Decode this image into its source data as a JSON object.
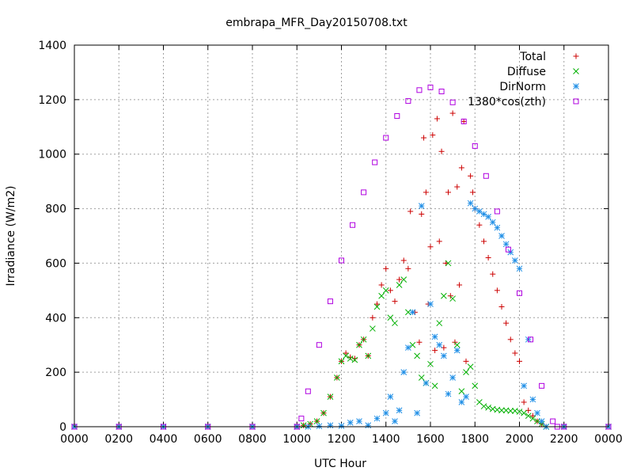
{
  "chart_data": {
    "type": "scatter",
    "title": "embrapa_MFR_Day20150708.txt",
    "xlabel": "UTC Hour",
    "ylabel": "Irradiance (W/m2)",
    "xlim": [
      0,
      24
    ],
    "ylim": [
      0,
      1400
    ],
    "x_ticks": [
      {
        "value": 0,
        "label": "0000"
      },
      {
        "value": 2,
        "label": "0200"
      },
      {
        "value": 4,
        "label": "0400"
      },
      {
        "value": 6,
        "label": "0600"
      },
      {
        "value": 8,
        "label": "0800"
      },
      {
        "value": 10,
        "label": "1000"
      },
      {
        "value": 12,
        "label": "1200"
      },
      {
        "value": 14,
        "label": "1400"
      },
      {
        "value": 16,
        "label": "1600"
      },
      {
        "value": 18,
        "label": "1800"
      },
      {
        "value": 20,
        "label": "2000"
      },
      {
        "value": 22,
        "label": "2200"
      },
      {
        "value": 24,
        "label": "0000"
      }
    ],
    "y_ticks": [
      0,
      200,
      400,
      600,
      800,
      1000,
      1200,
      1400
    ],
    "grid": true,
    "legend_position": "top-right",
    "series": [
      {
        "name": "Total",
        "marker": "+",
        "color": "#cc0000",
        "points": [
          [
            0,
            0
          ],
          [
            2,
            0
          ],
          [
            4,
            0
          ],
          [
            6,
            0
          ],
          [
            8,
            0
          ],
          [
            10,
            0
          ],
          [
            10.3,
            5
          ],
          [
            10.6,
            10
          ],
          [
            10.9,
            20
          ],
          [
            11.2,
            50
          ],
          [
            11.5,
            110
          ],
          [
            11.8,
            180
          ],
          [
            12.0,
            240
          ],
          [
            12.2,
            270
          ],
          [
            12.4,
            255
          ],
          [
            12.6,
            250
          ],
          [
            12.8,
            300
          ],
          [
            13.0,
            320
          ],
          [
            13.2,
            260
          ],
          [
            13.4,
            400
          ],
          [
            13.6,
            450
          ],
          [
            13.8,
            520
          ],
          [
            14.0,
            580
          ],
          [
            14.2,
            500
          ],
          [
            14.4,
            460
          ],
          [
            14.6,
            540
          ],
          [
            14.8,
            610
          ],
          [
            15.0,
            580
          ],
          [
            15.1,
            790
          ],
          [
            15.3,
            420
          ],
          [
            15.5,
            310
          ],
          [
            15.6,
            780
          ],
          [
            15.7,
            1060
          ],
          [
            15.8,
            860
          ],
          [
            15.9,
            450
          ],
          [
            16.0,
            660
          ],
          [
            16.1,
            1070
          ],
          [
            16.2,
            280
          ],
          [
            16.3,
            1130
          ],
          [
            16.4,
            680
          ],
          [
            16.5,
            1010
          ],
          [
            16.6,
            290
          ],
          [
            16.7,
            600
          ],
          [
            16.8,
            860
          ],
          [
            16.9,
            480
          ],
          [
            17.0,
            1150
          ],
          [
            17.1,
            310
          ],
          [
            17.2,
            880
          ],
          [
            17.3,
            520
          ],
          [
            17.4,
            950
          ],
          [
            17.5,
            1120
          ],
          [
            17.6,
            240
          ],
          [
            17.8,
            920
          ],
          [
            17.9,
            860
          ],
          [
            18.0,
            800
          ],
          [
            18.2,
            740
          ],
          [
            18.4,
            680
          ],
          [
            18.6,
            620
          ],
          [
            18.8,
            560
          ],
          [
            19.0,
            500
          ],
          [
            19.2,
            440
          ],
          [
            19.4,
            380
          ],
          [
            19.6,
            320
          ],
          [
            19.8,
            270
          ],
          [
            20.0,
            240
          ],
          [
            20.2,
            90
          ],
          [
            20.4,
            60
          ],
          [
            20.6,
            40
          ],
          [
            20.8,
            20
          ],
          [
            21.0,
            10
          ],
          [
            21.2,
            0
          ],
          [
            22,
            0
          ],
          [
            24,
            0
          ]
        ]
      },
      {
        "name": "Diffuse",
        "marker": "x",
        "color": "#00b000",
        "points": [
          [
            0,
            0
          ],
          [
            2,
            0
          ],
          [
            4,
            0
          ],
          [
            6,
            0
          ],
          [
            8,
            0
          ],
          [
            10,
            0
          ],
          [
            10.3,
            5
          ],
          [
            10.6,
            10
          ],
          [
            10.9,
            20
          ],
          [
            11.2,
            50
          ],
          [
            11.5,
            110
          ],
          [
            11.8,
            180
          ],
          [
            12.0,
            240
          ],
          [
            12.2,
            260
          ],
          [
            12.4,
            250
          ],
          [
            12.6,
            245
          ],
          [
            12.8,
            300
          ],
          [
            13.0,
            320
          ],
          [
            13.2,
            260
          ],
          [
            13.4,
            360
          ],
          [
            13.6,
            440
          ],
          [
            13.8,
            480
          ],
          [
            14.0,
            500
          ],
          [
            14.2,
            400
          ],
          [
            14.4,
            380
          ],
          [
            14.6,
            520
          ],
          [
            14.8,
            540
          ],
          [
            15.0,
            420
          ],
          [
            15.2,
            300
          ],
          [
            15.4,
            260
          ],
          [
            15.6,
            180
          ],
          [
            15.8,
            160
          ],
          [
            16.0,
            230
          ],
          [
            16.2,
            150
          ],
          [
            16.4,
            380
          ],
          [
            16.6,
            480
          ],
          [
            16.8,
            600
          ],
          [
            17.0,
            470
          ],
          [
            17.2,
            300
          ],
          [
            17.4,
            130
          ],
          [
            17.6,
            200
          ],
          [
            17.8,
            220
          ],
          [
            18.0,
            150
          ],
          [
            18.2,
            90
          ],
          [
            18.4,
            75
          ],
          [
            18.6,
            70
          ],
          [
            18.8,
            65
          ],
          [
            19.0,
            62
          ],
          [
            19.2,
            60
          ],
          [
            19.4,
            60
          ],
          [
            19.6,
            58
          ],
          [
            19.8,
            58
          ],
          [
            20.0,
            55
          ],
          [
            20.2,
            50
          ],
          [
            20.4,
            40
          ],
          [
            20.6,
            30
          ],
          [
            20.8,
            20
          ],
          [
            21.0,
            10
          ],
          [
            21.2,
            0
          ],
          [
            22,
            0
          ],
          [
            24,
            0
          ]
        ]
      },
      {
        "name": "DirNorm",
        "marker": "*",
        "color": "#1e8ee6",
        "points": [
          [
            0,
            0
          ],
          [
            2,
            0
          ],
          [
            4,
            0
          ],
          [
            6,
            0
          ],
          [
            8,
            0
          ],
          [
            10,
            0
          ],
          [
            10.5,
            0
          ],
          [
            11.0,
            2
          ],
          [
            11.5,
            5
          ],
          [
            12.0,
            3
          ],
          [
            12.4,
            15
          ],
          [
            12.8,
            20
          ],
          [
            13.2,
            5
          ],
          [
            13.6,
            30
          ],
          [
            14.0,
            50
          ],
          [
            14.2,
            110
          ],
          [
            14.4,
            20
          ],
          [
            14.6,
            60
          ],
          [
            14.8,
            200
          ],
          [
            15.0,
            290
          ],
          [
            15.2,
            420
          ],
          [
            15.4,
            50
          ],
          [
            15.6,
            810
          ],
          [
            15.8,
            160
          ],
          [
            16.0,
            450
          ],
          [
            16.2,
            330
          ],
          [
            16.4,
            300
          ],
          [
            16.6,
            260
          ],
          [
            16.8,
            120
          ],
          [
            17.0,
            180
          ],
          [
            17.2,
            280
          ],
          [
            17.4,
            90
          ],
          [
            17.6,
            110
          ],
          [
            17.8,
            820
          ],
          [
            18.0,
            800
          ],
          [
            18.2,
            790
          ],
          [
            18.4,
            780
          ],
          [
            18.6,
            770
          ],
          [
            18.8,
            750
          ],
          [
            19.0,
            730
          ],
          [
            19.2,
            700
          ],
          [
            19.4,
            670
          ],
          [
            19.6,
            640
          ],
          [
            19.8,
            610
          ],
          [
            20.0,
            580
          ],
          [
            20.2,
            150
          ],
          [
            20.4,
            320
          ],
          [
            20.6,
            100
          ],
          [
            20.8,
            50
          ],
          [
            21.0,
            20
          ],
          [
            21.2,
            0
          ],
          [
            22,
            0
          ],
          [
            24,
            0
          ]
        ]
      },
      {
        "name": "1380*cos(zth)",
        "marker": "square",
        "color": "#b000e0",
        "points": [
          [
            0,
            0
          ],
          [
            2,
            0
          ],
          [
            4,
            0
          ],
          [
            6,
            0
          ],
          [
            8,
            0
          ],
          [
            10,
            0
          ],
          [
            10.2,
            30
          ],
          [
            10.5,
            130
          ],
          [
            11.0,
            300
          ],
          [
            11.5,
            460
          ],
          [
            12.0,
            610
          ],
          [
            12.5,
            740
          ],
          [
            13.0,
            860
          ],
          [
            13.5,
            970
          ],
          [
            14.0,
            1060
          ],
          [
            14.5,
            1140
          ],
          [
            15.0,
            1195
          ],
          [
            15.5,
            1235
          ],
          [
            16.0,
            1245
          ],
          [
            16.5,
            1230
          ],
          [
            17.0,
            1190
          ],
          [
            17.5,
            1120
          ],
          [
            18.0,
            1030
          ],
          [
            18.5,
            920
          ],
          [
            19.0,
            790
          ],
          [
            19.5,
            650
          ],
          [
            20.0,
            490
          ],
          [
            20.5,
            320
          ],
          [
            21.0,
            150
          ],
          [
            21.5,
            20
          ],
          [
            21.7,
            0
          ],
          [
            22,
            0
          ],
          [
            24,
            0
          ]
        ]
      }
    ]
  }
}
